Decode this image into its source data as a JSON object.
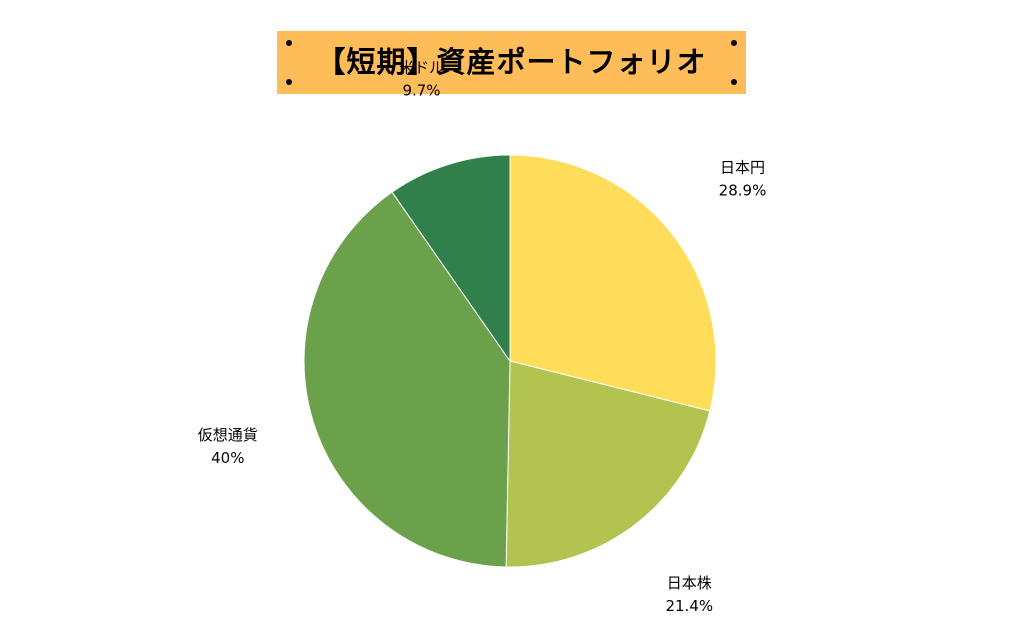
{
  "chart_data": {
    "type": "pie",
    "title": "【短期】資産ポートフォリオ",
    "slices": [
      {
        "label": "日本円",
        "value": 28.9,
        "value_label": "28.9%",
        "color": "#ffdc5a"
      },
      {
        "label": "日本株",
        "value": 21.4,
        "value_label": "21.4%",
        "color": "#b2c350"
      },
      {
        "label": "仮想通貨",
        "value": 40,
        "value_label": "40%",
        "color": "#6ca14b"
      },
      {
        "label": "米ドル",
        "value": 9.7,
        "value_label": "9.7%",
        "color": "#317f4b"
      }
    ],
    "start_angle": "12 o'clock",
    "direction": "clockwise",
    "legend": "none",
    "banner_color": "#ffbd59"
  }
}
